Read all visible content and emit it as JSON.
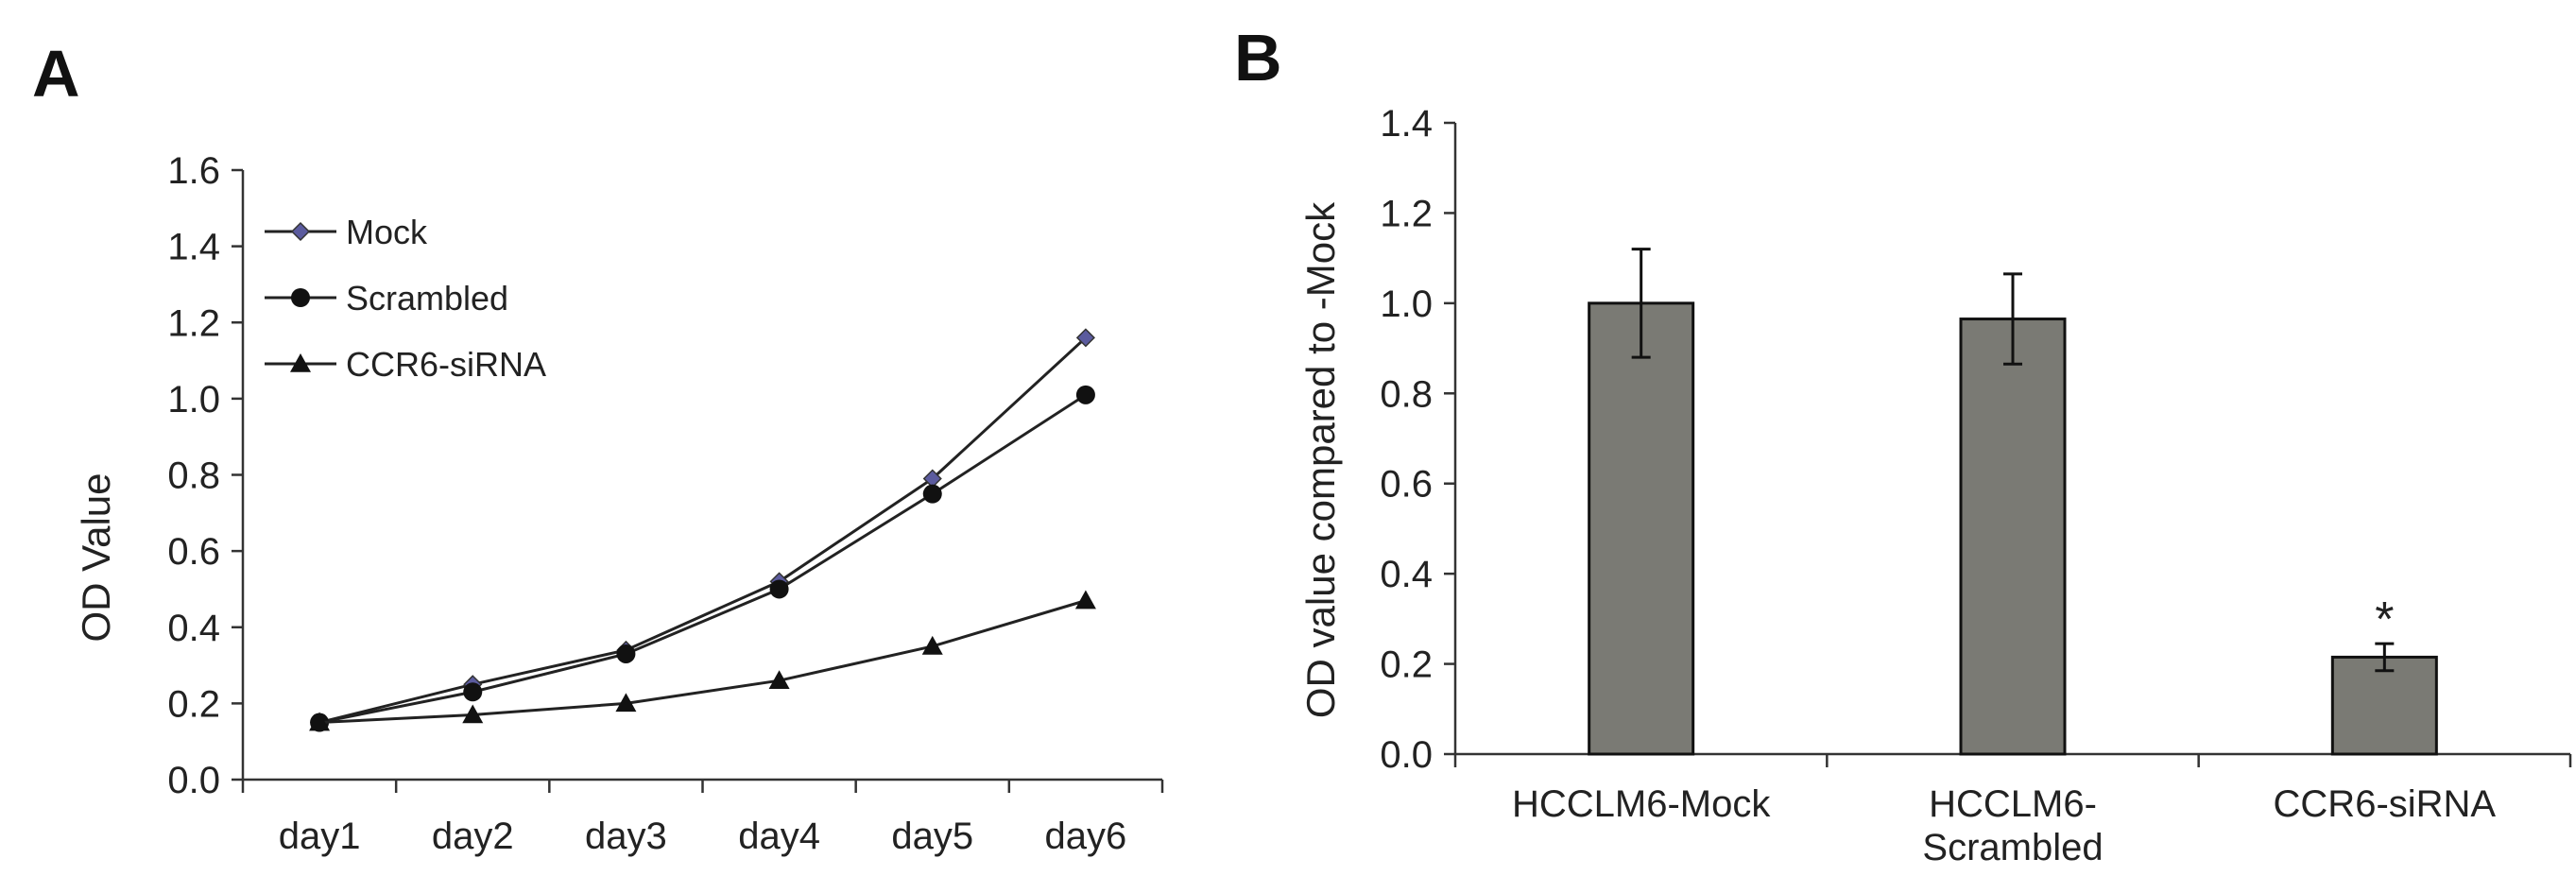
{
  "chart_data": [
    {
      "panel": "A",
      "type": "line",
      "title": "",
      "xlabel": "",
      "ylabel": "OD Value",
      "categories": [
        "day1",
        "day2",
        "day3",
        "day4",
        "day5",
        "day6"
      ],
      "ylim": [
        0,
        1.6
      ],
      "yticks": [
        "0.0",
        "0.2",
        "0.4",
        "0.6",
        "0.8",
        "1.0",
        "1.2",
        "1.4",
        "1.6"
      ],
      "grid": false,
      "legend_position": "top-left",
      "series": [
        {
          "name": "Mock",
          "marker": "diamond",
          "color": "#5b5b9e",
          "values": [
            0.15,
            0.25,
            0.34,
            0.52,
            0.79,
            1.16
          ]
        },
        {
          "name": "Scrambled",
          "marker": "circle",
          "color": "#111111",
          "values": [
            0.15,
            0.23,
            0.33,
            0.5,
            0.75,
            1.01
          ]
        },
        {
          "name": "CCR6-siRNA",
          "marker": "triangle",
          "color": "#111111",
          "values": [
            0.15,
            0.17,
            0.2,
            0.26,
            0.35,
            0.47
          ]
        }
      ]
    },
    {
      "panel": "B",
      "type": "bar",
      "title": "",
      "xlabel": "",
      "ylabel": "OD value compared to -Mock",
      "categories": [
        [
          "HCCLM6-Mock"
        ],
        [
          "HCCLM6-",
          "Scrambled"
        ],
        [
          "CCR6-siRNA"
        ]
      ],
      "values": [
        1.0,
        0.965,
        0.215
      ],
      "errors": [
        0.12,
        0.1,
        0.03
      ],
      "significance": [
        "",
        "",
        "*"
      ],
      "ylim": [
        0,
        1.4
      ],
      "yticks": [
        "0.0",
        "0.2",
        "0.4",
        "0.6",
        "0.8",
        "1.0",
        "1.2",
        "1.4"
      ],
      "bar_color": "#7a7a74",
      "grid": false
    }
  ]
}
